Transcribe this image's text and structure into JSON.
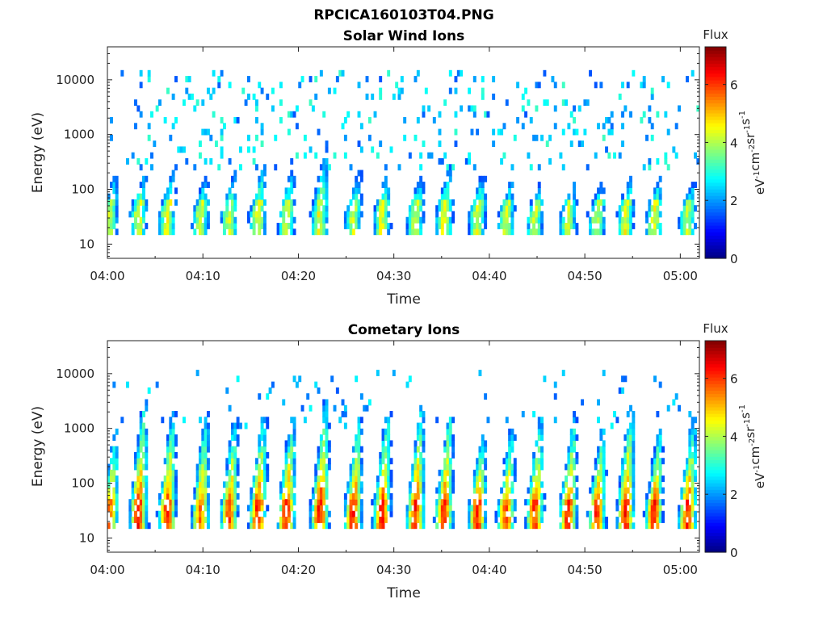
{
  "figure_title": "RPCICA160103T04.PNG",
  "chart_data": [
    {
      "type": "heatmap",
      "title": "Solar Wind Ions",
      "xlabel": "Time",
      "ylabel": "Energy (eV)",
      "x_tick_labels": [
        "04:00",
        "04:10",
        "04:20",
        "04:30",
        "04:40",
        "04:50",
        "05:00"
      ],
      "x_range": [
        "04:00",
        "05:02"
      ],
      "y_scale": "log",
      "y_tick_labels": [
        "10",
        "100",
        "1000",
        "10000"
      ],
      "y_range": [
        5.5,
        40000
      ],
      "colorbar": {
        "title": "Flux",
        "unit_label": "eV-1cm-2sr-1s-1",
        "ticks": [
          "0",
          "2",
          "4",
          "6"
        ],
        "range": [
          0,
          7.3
        ],
        "colormap": "jet"
      },
      "pulses": [
        {
          "t": "04:00.5",
          "peak_log_flux": 4.6,
          "max_energy_ev": 240
        },
        {
          "t": "04:03.5",
          "peak_log_flux": 4.8,
          "max_energy_ev": 190
        },
        {
          "t": "04:06.5",
          "peak_log_flux": 4.9,
          "max_energy_ev": 200
        },
        {
          "t": "04:10",
          "peak_log_flux": 4.6,
          "max_energy_ev": 170
        },
        {
          "t": "04:13",
          "peak_log_flux": 4.7,
          "max_energy_ev": 220
        },
        {
          "t": "04:16",
          "peak_log_flux": 4.9,
          "max_energy_ev": 300
        },
        {
          "t": "04:19",
          "peak_log_flux": 4.7,
          "max_energy_ev": 230
        },
        {
          "t": "04:22.5",
          "peak_log_flux": 4.9,
          "max_energy_ev": 700
        },
        {
          "t": "04:26",
          "peak_log_flux": 4.6,
          "max_energy_ev": 200
        },
        {
          "t": "04:29",
          "peak_log_flux": 4.8,
          "max_energy_ev": 220
        },
        {
          "t": "04:32.5",
          "peak_log_flux": 4.6,
          "max_energy_ev": 200
        },
        {
          "t": "04:35.5",
          "peak_log_flux": 4.9,
          "max_energy_ev": 280
        },
        {
          "t": "04:39",
          "peak_log_flux": 4.7,
          "max_energy_ev": 200
        },
        {
          "t": "04:42",
          "peak_log_flux": 4.6,
          "max_energy_ev": 150
        },
        {
          "t": "04:45",
          "peak_log_flux": 4.6,
          "max_energy_ev": 130
        },
        {
          "t": "04:48.5",
          "peak_log_flux": 4.6,
          "max_energy_ev": 130
        },
        {
          "t": "04:51.5",
          "peak_log_flux": 4.6,
          "max_energy_ev": 140
        },
        {
          "t": "04:54.5",
          "peak_log_flux": 4.9,
          "max_energy_ev": 180
        },
        {
          "t": "04:57.5",
          "peak_log_flux": 4.8,
          "max_energy_ev": 160
        },
        {
          "t": "05:01",
          "peak_log_flux": 4.5,
          "max_energy_ev": 140
        }
      ],
      "core_energy_ev": [
        20,
        60
      ],
      "background": {
        "energy_range_ev": [
          200,
          15000
        ],
        "log_flux_range": [
          1.5,
          3.2
        ]
      }
    },
    {
      "type": "heatmap",
      "title": "Cometary Ions",
      "xlabel": "Time",
      "ylabel": "Energy (eV)",
      "x_tick_labels": [
        "04:00",
        "04:10",
        "04:20",
        "04:30",
        "04:40",
        "04:50",
        "05:00"
      ],
      "x_range": [
        "04:00",
        "05:02"
      ],
      "y_scale": "log",
      "y_tick_labels": [
        "10",
        "100",
        "1000",
        "10000"
      ],
      "y_range": [
        5.5,
        40000
      ],
      "colorbar": {
        "title": "Flux",
        "unit_label": "eV-1cm-2sr-1s-1",
        "ticks": [
          "0",
          "2",
          "4",
          "6"
        ],
        "range": [
          0,
          7.3
        ],
        "colormap": "jet"
      },
      "pulses": [
        {
          "t": "04:00.5",
          "peak_log_flux": 6.0,
          "max_energy_ev": 900
        },
        {
          "t": "04:03.5",
          "peak_log_flux": 6.6,
          "max_energy_ev": 3000
        },
        {
          "t": "04:06.5",
          "peak_log_flux": 6.6,
          "max_energy_ev": 2000
        },
        {
          "t": "04:10",
          "peak_log_flux": 6.1,
          "max_energy_ev": 2000
        },
        {
          "t": "04:13",
          "peak_log_flux": 6.3,
          "max_energy_ev": 1500
        },
        {
          "t": "04:16",
          "peak_log_flux": 6.6,
          "max_energy_ev": 1800
        },
        {
          "t": "04:19",
          "peak_log_flux": 6.6,
          "max_energy_ev": 1500
        },
        {
          "t": "04:22.5",
          "peak_log_flux": 6.7,
          "max_energy_ev": 3000
        },
        {
          "t": "04:26",
          "peak_log_flux": 6.6,
          "max_energy_ev": 1500
        },
        {
          "t": "04:29",
          "peak_log_flux": 6.6,
          "max_energy_ev": 2000
        },
        {
          "t": "04:32.5",
          "peak_log_flux": 6.6,
          "max_energy_ev": 2500
        },
        {
          "t": "04:35.5",
          "peak_log_flux": 6.7,
          "max_energy_ev": 1800
        },
        {
          "t": "04:39",
          "peak_log_flux": 6.5,
          "max_energy_ev": 800
        },
        {
          "t": "04:42",
          "peak_log_flux": 6.3,
          "max_energy_ev": 1000
        },
        {
          "t": "04:45",
          "peak_log_flux": 6.4,
          "max_energy_ev": 1500
        },
        {
          "t": "04:48.5",
          "peak_log_flux": 6.5,
          "max_energy_ev": 1500
        },
        {
          "t": "04:51.5",
          "peak_log_flux": 6.4,
          "max_energy_ev": 1000
        },
        {
          "t": "04:54.5",
          "peak_log_flux": 6.7,
          "max_energy_ev": 2500
        },
        {
          "t": "04:57.5",
          "peak_log_flux": 6.6,
          "max_energy_ev": 1000
        },
        {
          "t": "05:01",
          "peak_log_flux": 6.5,
          "max_energy_ev": 1500
        }
      ],
      "core_energy_ev": [
        18,
        50
      ],
      "background": {
        "energy_range_ev": [
          1000,
          12000
        ],
        "log_flux_range": [
          1.5,
          2.8
        ]
      }
    }
  ]
}
